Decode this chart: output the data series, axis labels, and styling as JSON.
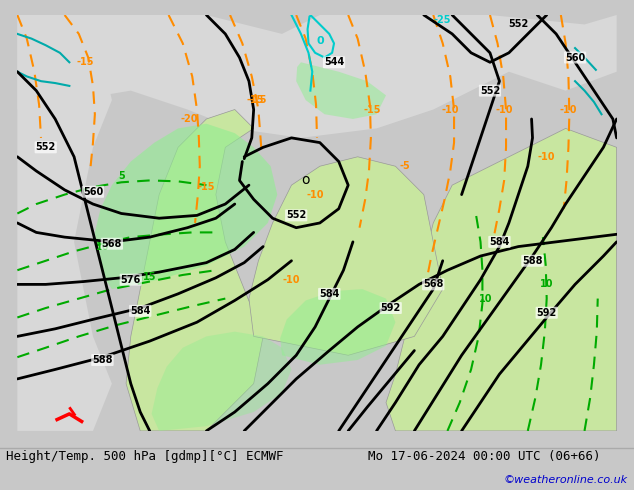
{
  "title_left": "Height/Temp. 500 hPa [gdmp][°C] ECMWF",
  "title_right": "Mo 17-06-2024 00:00 UTC (06+66)",
  "credit": "©weatheronline.co.uk",
  "bg_color": "#d0d0d0",
  "land_color": "#c8e6a0",
  "sea_color": "#dcdcdc",
  "contour_color_z500": "#000000",
  "contour_color_temp_neg": "#ff8c00",
  "contour_color_temp_pos": "#00aa00",
  "contour_color_cyan": "#00cccc",
  "contour_color_teal": "#008080",
  "title_fontsize": 9,
  "credit_fontsize": 8,
  "credit_color": "#0000cc"
}
